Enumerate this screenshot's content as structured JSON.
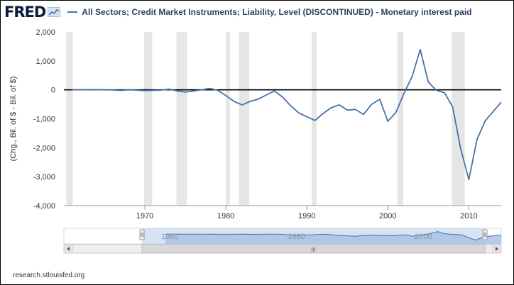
{
  "header": {
    "logo_text": "FRED",
    "series_title": "All Sectors; Credit Market Instruments; Liability, Level (DISCONTINUED) - Monetary interest paid"
  },
  "footer": {
    "source": "research.stlouisfed.org"
  },
  "colors": {
    "line": "#4572a7",
    "recession": "#e6e6e6",
    "zero_line": "#000000",
    "navigator_fill": "#a9c2e4"
  },
  "chart_data": {
    "type": "line",
    "title": "All Sectors; Credit Market Instruments; Liability, Level (DISCONTINUED) - Monetary interest paid",
    "ylabel": "(Chg., Bil. of $ - Bil. of $)",
    "xlabel": "",
    "ylim": [
      -4000,
      2000
    ],
    "xlim": [
      1960,
      2014
    ],
    "x_ticks": [
      1970,
      1980,
      1990,
      2000,
      2010
    ],
    "y_ticks": [
      -4000,
      -3000,
      -2000,
      -1000,
      0,
      1000,
      2000
    ],
    "y_tick_labels": [
      "-4,000",
      "-3,000",
      "-2,000",
      "-1,000",
      "0",
      "1,000",
      "2,000"
    ],
    "grid": false,
    "series": [
      {
        "x": [
          1961,
          1962,
          1963,
          1964,
          1965,
          1966,
          1967,
          1968,
          1969,
          1970,
          1971,
          1972,
          1973,
          1974,
          1975,
          1976,
          1977,
          1978,
          1979,
          1980,
          1981,
          1982,
          1983,
          1984,
          1985,
          1986,
          1987,
          1988,
          1989,
          1990,
          1991,
          1992,
          1993,
          1994,
          1995,
          1996,
          1997,
          1998,
          1999,
          2000,
          2001,
          2002,
          2003,
          2004,
          2005,
          2006,
          2007,
          2008,
          2009,
          2010,
          2011,
          2012,
          2013,
          2014
        ],
        "values": [
          0,
          0,
          5,
          5,
          0,
          -5,
          -20,
          0,
          -10,
          -30,
          -20,
          -10,
          20,
          -40,
          -80,
          -40,
          0,
          50,
          -20,
          -200,
          -400,
          -520,
          -400,
          -320,
          -180,
          -40,
          -250,
          -550,
          -800,
          -930,
          -1060,
          -820,
          -620,
          -520,
          -700,
          -680,
          -850,
          -500,
          -330,
          -1090,
          -780,
          -120,
          460,
          1390,
          270,
          -20,
          -100,
          -590,
          -2050,
          -3100,
          -1720,
          -1080,
          -750,
          -430
        ]
      }
    ],
    "recessions": [
      [
        1960.3,
        1961.1
      ],
      [
        1969.9,
        1970.9
      ],
      [
        1973.9,
        1975.2
      ],
      [
        1980.0,
        1980.5
      ],
      [
        1981.6,
        1982.9
      ],
      [
        1990.6,
        1991.2
      ],
      [
        2001.2,
        2001.9
      ],
      [
        2007.9,
        2009.5
      ]
    ],
    "navigator": {
      "tick_labels": [
        "1960",
        "1980",
        "2000"
      ],
      "scroll_handle": "III"
    }
  }
}
